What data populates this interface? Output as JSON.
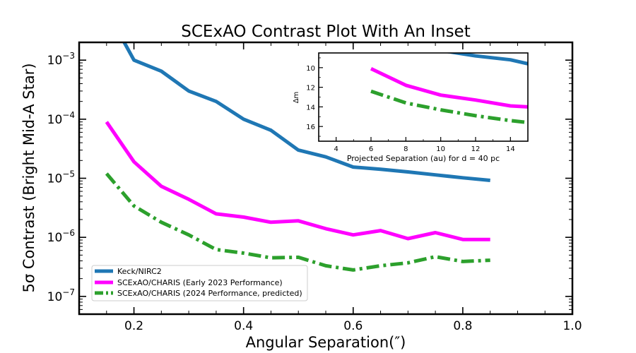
{
  "chart_data": [
    {
      "type": "line",
      "title": "SCExAO Contrast Plot With An Inset",
      "xlabel": "Angular Separation(″)",
      "ylabel": "5σ Contrast (Bright Mid-A Star)",
      "xlim": [
        0.1,
        1.0
      ],
      "ylim": [
        5e-08,
        0.002
      ],
      "yscale": "log",
      "x_ticks": [
        0.2,
        0.4,
        0.6,
        0.8,
        1.0
      ],
      "x_tick_labels": [
        "0.2",
        "0.4",
        "0.6",
        "0.8",
        "1.0"
      ],
      "y_ticks": [
        1e-07,
        1e-06,
        1e-05,
        0.0001,
        0.001
      ],
      "y_tick_labels": [
        {
          "base": "10",
          "exp": "−7"
        },
        {
          "base": "10",
          "exp": "−6"
        },
        {
          "base": "10",
          "exp": "−5"
        },
        {
          "base": "10",
          "exp": "−4"
        },
        {
          "base": "10",
          "exp": "−3"
        }
      ],
      "grid": false,
      "legend_position": "lower-left",
      "series": [
        {
          "name": "Keck/NIRC2",
          "color": "#1f77b4",
          "style": "solid",
          "x": [
            0.15,
            0.2,
            0.25,
            0.3,
            0.35,
            0.4,
            0.45,
            0.5,
            0.55,
            0.6,
            0.65,
            0.7,
            0.75,
            0.8,
            0.85
          ],
          "y": [
            0.007,
            0.001,
            0.00065,
            0.0003,
            0.0002,
            0.0001,
            6.5e-05,
            3e-05,
            2.3e-05,
            1.55e-05,
            1.42e-05,
            1.28e-05,
            1.14e-05,
            1.02e-05,
            9.2e-06
          ]
        },
        {
          "name": "SCExAO/CHARIS (Early 2023 Performance)",
          "color": "#ff00ff",
          "style": "solid",
          "x": [
            0.15,
            0.2,
            0.25,
            0.3,
            0.35,
            0.4,
            0.45,
            0.5,
            0.55,
            0.6,
            0.65,
            0.7,
            0.75,
            0.8,
            0.85
          ],
          "y": [
            9e-05,
            1.9e-05,
            7.3e-06,
            4.4e-06,
            2.5e-06,
            2.2e-06,
            1.8e-06,
            1.9e-06,
            1.4e-06,
            1.1e-06,
            1.3e-06,
            9.5e-07,
            1.2e-06,
            9.2e-07,
            9.2e-07
          ]
        },
        {
          "name": "SCExAO/CHARIS (2024 Performance, predicted)",
          "color": "#2ca02c",
          "style": "dashdot",
          "x": [
            0.15,
            0.2,
            0.25,
            0.3,
            0.35,
            0.4,
            0.45,
            0.5,
            0.55,
            0.6,
            0.65,
            0.7,
            0.75,
            0.8,
            0.85
          ],
          "y": [
            1.2e-05,
            3.4e-06,
            1.8e-06,
            1.1e-06,
            6.2e-07,
            5.4e-07,
            4.5e-07,
            4.6e-07,
            3.3e-07,
            2.8e-07,
            3.3e-07,
            3.7e-07,
            4.7e-07,
            3.9e-07,
            4.1e-07
          ]
        }
      ]
    },
    {
      "type": "line",
      "title": "",
      "xlabel": "Projected Separation (au) for d = 40 pc",
      "ylabel": "Δm",
      "xlim": [
        3,
        15
      ],
      "ylim": [
        17.5,
        8.5
      ],
      "y_inverted": true,
      "x_ticks": [
        4,
        6,
        8,
        10,
        12,
        14
      ],
      "y_ticks": [
        10,
        12,
        14,
        16
      ],
      "grid": false,
      "series": [
        {
          "color": "#1f77b4",
          "style": "solid",
          "x": [
            10.0,
            12.0,
            14.0,
            15.0
          ],
          "y": [
            8.25,
            8.8,
            9.2,
            9.6
          ]
        },
        {
          "color": "#ff00ff",
          "style": "solid",
          "x": [
            6.0,
            8.0,
            10.0,
            12.0,
            14.0,
            15.0
          ],
          "y": [
            10.1,
            11.8,
            12.8,
            13.3,
            13.9,
            14.0
          ]
        },
        {
          "color": "#2ca02c",
          "style": "dashdot",
          "x": [
            6.0,
            8.0,
            10.0,
            12.0,
            14.0,
            15.0
          ],
          "y": [
            12.4,
            13.6,
            14.3,
            14.9,
            15.4,
            15.6
          ]
        }
      ]
    }
  ]
}
